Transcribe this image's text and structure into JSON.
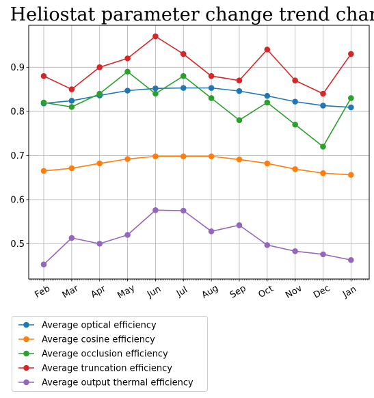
{
  "chart_data": {
    "type": "line",
    "title": "Heliostat parameter change trend chart",
    "xlabel": "",
    "ylabel": "",
    "categories": [
      "Feb",
      "Mar",
      "Apr",
      "May",
      "Jun",
      "Jul",
      "Aug",
      "Sep",
      "Oct",
      "Nov",
      "Dec",
      "Jan"
    ],
    "ylim": [
      0.42,
      0.995
    ],
    "yticks": [
      "0.5",
      "0.6",
      "0.7",
      "0.8",
      "0.9"
    ],
    "grid": true,
    "legend_position": "below",
    "series": [
      {
        "name": "Average optical efficiency",
        "color": "#1f77b4",
        "values": [
          0.818,
          0.824,
          0.836,
          0.847,
          0.852,
          0.853,
          0.853,
          0.846,
          0.835,
          0.822,
          0.813,
          0.809
        ]
      },
      {
        "name": "Average cosine efficiency",
        "color": "#ff7f0e",
        "values": [
          0.665,
          0.671,
          0.682,
          0.692,
          0.698,
          0.698,
          0.698,
          0.691,
          0.682,
          0.669,
          0.66,
          0.656
        ]
      },
      {
        "name": "Average occlusion efficiency",
        "color": "#2ca02c",
        "values": [
          0.82,
          0.81,
          0.84,
          0.89,
          0.84,
          0.88,
          0.83,
          0.78,
          0.82,
          0.77,
          0.72,
          0.83
        ]
      },
      {
        "name": "Average truncation efficiency",
        "color": "#d62728",
        "values": [
          0.88,
          0.85,
          0.9,
          0.92,
          0.97,
          0.93,
          0.88,
          0.87,
          0.94,
          0.87,
          0.84,
          0.93
        ]
      },
      {
        "name": "Average output thermal efficiency",
        "color": "#9467bd",
        "values": [
          0.453,
          0.513,
          0.5,
          0.52,
          0.576,
          0.575,
          0.528,
          0.542,
          0.497,
          0.483,
          0.476,
          0.463
        ]
      }
    ]
  }
}
